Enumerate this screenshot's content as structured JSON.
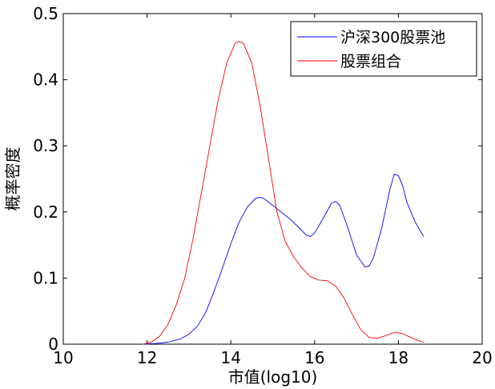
{
  "chart_data": {
    "type": "line",
    "title": "",
    "xlabel": "市值(log10)",
    "ylabel": "概率密度",
    "xlim": [
      10,
      20
    ],
    "ylim": [
      0,
      0.5
    ],
    "xticks": [
      10,
      12,
      14,
      16,
      18,
      20
    ],
    "yticks": [
      0,
      0.1,
      0.2,
      0.3,
      0.4,
      0.5
    ],
    "x_tick_labels": [
      "10",
      "12",
      "14",
      "16",
      "18",
      "20"
    ],
    "y_tick_labels": [
      "0",
      "0.1",
      "0.2",
      "0.3",
      "0.4",
      "0.5"
    ],
    "grid": false,
    "legend_position": "top-right",
    "series": [
      {
        "name": "沪深300股票池",
        "color": "#0000ff",
        "points": [
          [
            11.9,
            0.0
          ],
          [
            12.2,
            0.001
          ],
          [
            12.5,
            0.003
          ],
          [
            12.8,
            0.008
          ],
          [
            13.0,
            0.015
          ],
          [
            13.2,
            0.027
          ],
          [
            13.4,
            0.048
          ],
          [
            13.6,
            0.08
          ],
          [
            13.8,
            0.115
          ],
          [
            14.0,
            0.152
          ],
          [
            14.2,
            0.185
          ],
          [
            14.4,
            0.208
          ],
          [
            14.6,
            0.221
          ],
          [
            14.7,
            0.222
          ],
          [
            14.8,
            0.22
          ],
          [
            15.0,
            0.21
          ],
          [
            15.2,
            0.2
          ],
          [
            15.4,
            0.19
          ],
          [
            15.6,
            0.178
          ],
          [
            15.8,
            0.165
          ],
          [
            15.9,
            0.163
          ],
          [
            16.0,
            0.168
          ],
          [
            16.2,
            0.19
          ],
          [
            16.4,
            0.213
          ],
          [
            16.5,
            0.216
          ],
          [
            16.6,
            0.21
          ],
          [
            16.8,
            0.175
          ],
          [
            17.0,
            0.135
          ],
          [
            17.2,
            0.117
          ],
          [
            17.3,
            0.118
          ],
          [
            17.4,
            0.13
          ],
          [
            17.6,
            0.175
          ],
          [
            17.8,
            0.235
          ],
          [
            17.9,
            0.257
          ],
          [
            18.0,
            0.255
          ],
          [
            18.1,
            0.24
          ],
          [
            18.2,
            0.215
          ],
          [
            18.4,
            0.185
          ],
          [
            18.6,
            0.163
          ]
        ]
      },
      {
        "name": "股票组合",
        "color": "#ff0000",
        "points": [
          [
            11.9,
            0.0
          ],
          [
            12.1,
            0.003
          ],
          [
            12.3,
            0.012
          ],
          [
            12.5,
            0.03
          ],
          [
            12.7,
            0.06
          ],
          [
            12.9,
            0.1
          ],
          [
            13.1,
            0.16
          ],
          [
            13.3,
            0.23
          ],
          [
            13.5,
            0.3
          ],
          [
            13.7,
            0.37
          ],
          [
            13.9,
            0.425
          ],
          [
            14.1,
            0.455
          ],
          [
            14.2,
            0.458
          ],
          [
            14.3,
            0.455
          ],
          [
            14.5,
            0.425
          ],
          [
            14.7,
            0.36
          ],
          [
            14.9,
            0.28
          ],
          [
            15.1,
            0.2
          ],
          [
            15.3,
            0.155
          ],
          [
            15.5,
            0.132
          ],
          [
            15.7,
            0.115
          ],
          [
            15.9,
            0.102
          ],
          [
            16.1,
            0.097
          ],
          [
            16.3,
            0.096
          ],
          [
            16.5,
            0.088
          ],
          [
            16.7,
            0.07
          ],
          [
            16.9,
            0.045
          ],
          [
            17.1,
            0.022
          ],
          [
            17.3,
            0.01
          ],
          [
            17.5,
            0.009
          ],
          [
            17.7,
            0.013
          ],
          [
            17.9,
            0.018
          ],
          [
            18.1,
            0.016
          ],
          [
            18.3,
            0.01
          ],
          [
            18.5,
            0.005
          ],
          [
            18.6,
            0.003
          ]
        ]
      }
    ]
  }
}
